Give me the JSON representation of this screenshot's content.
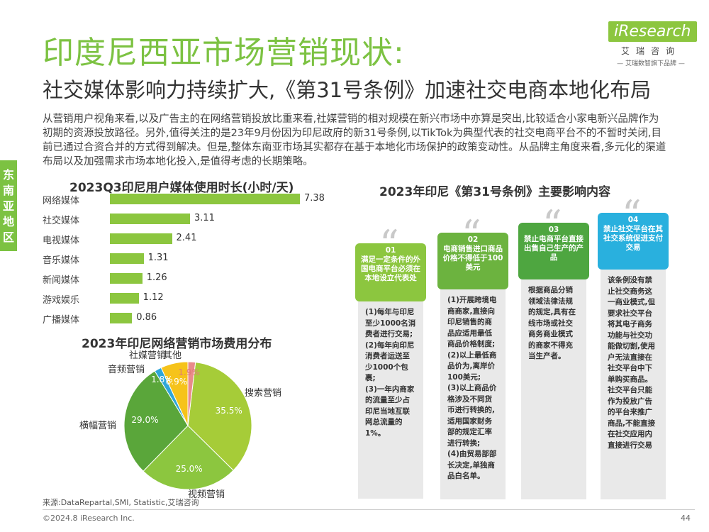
{
  "header": {
    "title": "印度尼西亚市场营销现状:",
    "subtitle": "社交媒体影响力持续扩大,《第31号条例》加速社交电商本地化布局"
  },
  "logo": {
    "brand": "iResearch",
    "cn": "艾瑞咨询",
    "slogan": "— 艾瑞数智旗下品牌 —"
  },
  "intro": "从营销用户视角来看,以及广告主的在网络营销投放比重来看,社媒营销的相对规模在新兴市场中亦算是突出,比较适合小家电新兴品牌作为初期的资源投放路径。另外,值得关注的是23年9月份因为印尼政府的新31号条例,以TikTok为典型代表的社交电商平台不的不暂时关闭,目前已通过合资合并的方式得到解决。但是,整体东南亚市场其实都存在基于本地化市场保护的政策变动性。从品牌主角度来看,多元化的渠道布局以及加强需求市场本地化投入,是值得考虑的长期策略。",
  "region_tab": "东南亚地区",
  "chart_data": [
    {
      "type": "bar",
      "orientation": "horizontal",
      "title": "2023Q3印尼用户媒体使用时长(小时/天)",
      "categories": [
        "网络媒体",
        "社交媒体",
        "电视媒体",
        "音乐媒体",
        "新闻媒体",
        "游戏娱乐",
        "广播媒体"
      ],
      "values": [
        7.38,
        3.11,
        2.41,
        1.31,
        1.26,
        1.12,
        0.86
      ],
      "color": "#8cc63f"
    },
    {
      "type": "pie",
      "title": "2023年印尼网络营销市场费用分布",
      "categories": [
        "搜索营销",
        "视频营销",
        "横幅营销",
        "音频营销",
        "社媒营销",
        "其他"
      ],
      "values": [
        35.5,
        25.0,
        29.0,
        1.8,
        6.9,
        1.9
      ],
      "value_labels": [
        "35.5%",
        "25.0%",
        "29.0%",
        "1.8%",
        "6.9%",
        "1.9%"
      ],
      "colors": [
        "#a6cc38",
        "#8cc63f",
        "#5aa63a",
        "#2fa6d8",
        "#f6c31a",
        "#e98b8b"
      ]
    }
  ],
  "regulation": {
    "title": "2023年印尼《第31号条例》主要影响内容",
    "cards": [
      {
        "number": "01",
        "head": "满足一定条件的外国电商平台必须在本地设立代表处",
        "color": "#8cc63f",
        "lines": [
          "(1)每年与印尼至少1000名消费者进行交易;",
          "(2)每年向印尼消费者运送至少1000个包裹;",
          "(3)一年内商家的流量至少占印尼当地互联网总流量的1%。"
        ]
      },
      {
        "number": "02",
        "head": "电商销售进口商品价格不得低于100美元",
        "color": "#6cb33f",
        "lines": [
          "(1)开展跨境电商商家,直接向印尼销售的商品应适用最低商品价格制度;",
          "(2)以上最低商品价为,离岸价100美元;",
          "(3)以上商品价格涉及不同货币进行转换的,适用国家财务部的规定汇率进行转换;",
          "(4)由贸易部部长决定,单独商品白名单。"
        ]
      },
      {
        "number": "03",
        "head": "禁止电商平台直接出售自己生产的产品",
        "color": "#4ea640",
        "lines": [
          "根据商品分销领域法律法规的规定,具有在线市场或社交商务商业模式的商家不得充当生产者。"
        ]
      },
      {
        "number": "04",
        "head": "禁止社交平台在其社交系统促进支付交易",
        "color": "#29b0de",
        "lines": [
          "该条例没有禁止社交商务这一商业模式,但要求社交平台将其电子商务功能与社交功能做切割,使用户无法直接在社交平台中下单购买商品。社交平台只能作为投放广告的平台来推广商品,不能直接在社交应用内直接进行交易"
        ]
      }
    ]
  },
  "footer": {
    "source": "来源:DataRepartal,SMI, Statistic,艾瑞咨询",
    "copyright": "©2024.8 iResearch Inc.",
    "page": "44"
  }
}
